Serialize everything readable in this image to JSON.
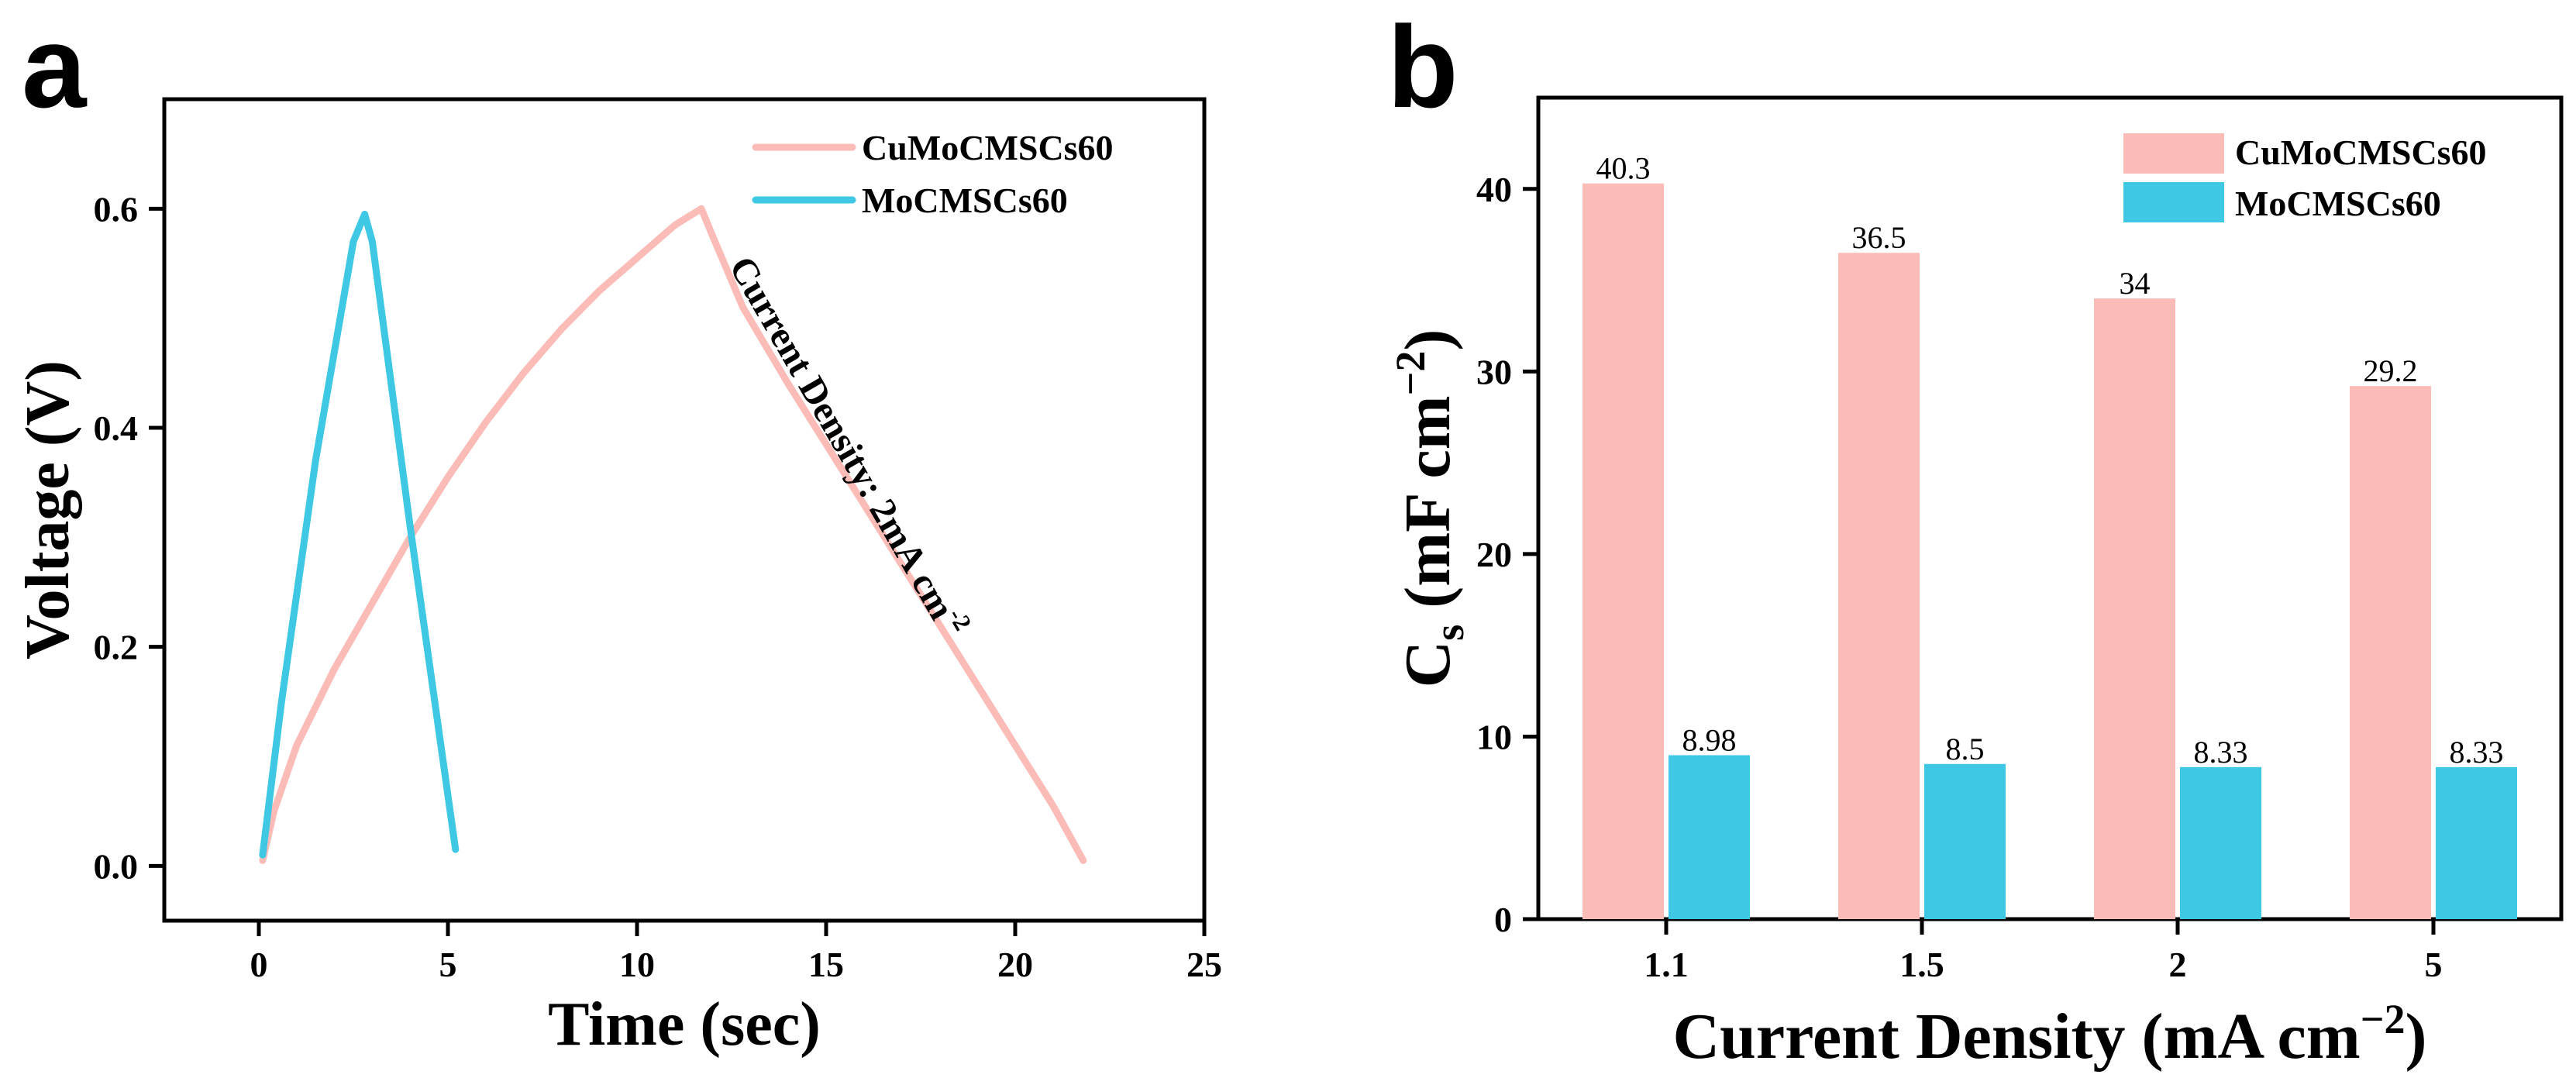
{
  "colors": {
    "pink": "#fbbcb8",
    "cyan": "#3ec8e4",
    "axis": "#000000"
  },
  "chart_data": [
    {
      "type": "line",
      "panel_label": "a",
      "xlabel": "Time (sec)",
      "ylabel": "Voltage (V)",
      "xlim": [
        -2.5,
        25
      ],
      "ylim": [
        -0.05,
        0.7
      ],
      "xticks": [
        0,
        5,
        10,
        15,
        20,
        25
      ],
      "xtick_labels": [
        "0",
        "5",
        "10",
        "15",
        "20",
        "25"
      ],
      "yticks": [
        0.0,
        0.2,
        0.4,
        0.6
      ],
      "ytick_labels": [
        "0.0",
        "0.2",
        "0.4",
        "0.6"
      ],
      "legend": [
        "CuMoCMSCs60",
        "MoCMSCs60"
      ],
      "annotation": {
        "text": "Current Density: 2mA cm",
        "superscript": "-2"
      },
      "series": [
        {
          "name": "CuMoCMSCs60",
          "color_key": "pink",
          "x": [
            0.1,
            0.4,
            1.0,
            2.0,
            3.0,
            4.0,
            5.0,
            6.0,
            7.0,
            8.0,
            9.0,
            10.0,
            11.0,
            11.7,
            12.0,
            12.8,
            14.0,
            15.0,
            16.0,
            17.0,
            18.0,
            19.0,
            20.0,
            21.0,
            21.8
          ],
          "values": [
            0.005,
            0.05,
            0.11,
            0.18,
            0.24,
            0.3,
            0.355,
            0.405,
            0.45,
            0.49,
            0.525,
            0.555,
            0.585,
            0.6,
            0.575,
            0.51,
            0.44,
            0.385,
            0.33,
            0.275,
            0.22,
            0.165,
            0.11,
            0.055,
            0.005
          ]
        },
        {
          "name": "MoCMSCs60",
          "color_key": "cyan",
          "x": [
            0.1,
            0.6,
            1.5,
            2.5,
            2.8,
            3.0,
            4.0,
            5.2
          ],
          "values": [
            0.01,
            0.15,
            0.37,
            0.57,
            0.595,
            0.57,
            0.31,
            0.015
          ]
        }
      ]
    },
    {
      "type": "bar",
      "panel_label": "b",
      "xlabel": "Current Density (mA cm",
      "xlabel_sup": "−2",
      "xlabel_end": ")",
      "ylabel_main": "C",
      "ylabel_sub": "s",
      "ylabel_mid": " (mF cm",
      "ylabel_sup": "−2",
      "ylabel_end": ")",
      "categories": [
        "1.1",
        "1.5",
        "2",
        "5"
      ],
      "ylim": [
        0,
        45
      ],
      "yticks": [
        0,
        10,
        20,
        30,
        40
      ],
      "ytick_labels": [
        "0",
        "10",
        "20",
        "30",
        "40"
      ],
      "series": [
        {
          "name": "CuMoCMSCs60",
          "color_key": "pink",
          "values": [
            40.3,
            36.5,
            34,
            29.2
          ],
          "labels": [
            "40.3",
            "36.5",
            "34",
            "29.2"
          ]
        },
        {
          "name": "MoCMSCs60",
          "color_key": "cyan",
          "values": [
            8.98,
            8.5,
            8.33,
            8.33
          ],
          "labels": [
            "8.98",
            "8.5",
            "8.33",
            "8.33"
          ]
        }
      ]
    }
  ]
}
